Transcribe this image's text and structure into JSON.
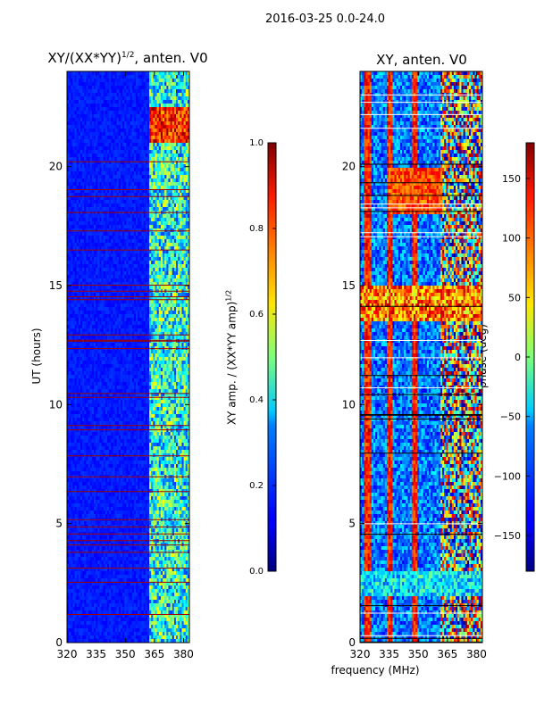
{
  "chart_data": {
    "suptitle": "2016-03-25 0.0-24.0",
    "xlabel": "frequency (MHz)",
    "panels": [
      {
        "type": "heatmap",
        "title_main": "XY/(XX*YY)",
        "title_exp": "1/2",
        "title_tail": ", anten. V0",
        "ylabel": "UT (hours)",
        "xlim": [
          320,
          383
        ],
        "ylim": [
          0,
          24
        ],
        "xticks": [
          320,
          335,
          350,
          365,
          380
        ],
        "yticks": [
          0,
          5,
          10,
          15,
          20
        ],
        "colormap": "jet",
        "colorbar": {
          "label_main": "XY amp. / (XX*YY amp)",
          "label_exp": "1/2",
          "range": [
            0.0,
            1.0
          ],
          "ticks": [
            "0.0",
            "0.2",
            "0.4",
            "0.6",
            "0.8",
            "1.0"
          ]
        }
      },
      {
        "type": "heatmap",
        "title_main": "XY, anten. V0",
        "ylabel": "",
        "xlim": [
          320,
          383
        ],
        "ylim": [
          0,
          24
        ],
        "xticks": [
          320,
          335,
          350,
          365,
          380
        ],
        "yticks": [
          0,
          5,
          10,
          15,
          20
        ],
        "colormap": "jet",
        "colorbar": {
          "label_main": "phase (deg)",
          "range": [
            -180,
            180
          ],
          "ticks": [
            "−150",
            "−100",
            "−50",
            "0",
            "50",
            "100",
            "150"
          ]
        }
      }
    ]
  }
}
